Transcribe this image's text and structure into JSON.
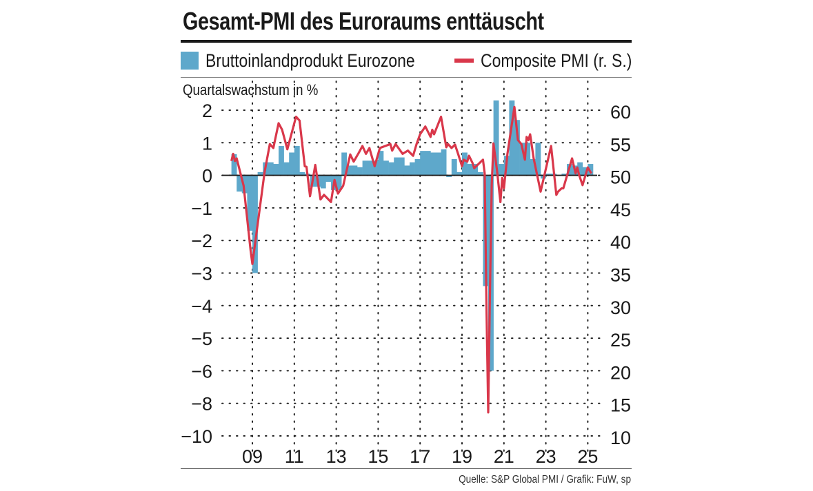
{
  "title": "Gesamt-PMI des Euroraums enttäuscht",
  "source": "Quelle: S&P Global PMI / Grafik: FuW, sp",
  "chart_data": {
    "type": "bar+line",
    "title": "Gesamt-PMI des Euroraums enttäuscht",
    "ylabel": "Quartalswachstum in %",
    "legend": [
      "Bruttoinlandprodukt Eurozone",
      "Composite PMI (r. S.)"
    ],
    "legend_placement": "top",
    "colors": {
      "bars": "#5ea8cb",
      "line": "#d9374a"
    },
    "grid": "dotted",
    "x_ticks": [
      "09",
      "11",
      "13",
      "15",
      "17",
      "19",
      "21",
      "23",
      "25"
    ],
    "x_tick_years": [
      2009,
      2011,
      2013,
      2015,
      2017,
      2019,
      2021,
      2023,
      2025
    ],
    "x_range": [
      "2008-01",
      "2025-06"
    ],
    "left_axis": {
      "ticks": [
        2,
        1,
        0,
        -1,
        -2,
        -3,
        -4,
        -5,
        -6,
        -8,
        -10
      ],
      "tick_labels": [
        "2",
        "1",
        "0",
        "−1",
        "−2",
        "−3",
        "−4",
        "−5",
        "−6",
        "−8",
        "−10"
      ],
      "scale": "nonlinear (−6 to −10 compressed)"
    },
    "right_axis": {
      "ticks": [
        60,
        55,
        50,
        45,
        40,
        35,
        30,
        25,
        20,
        15,
        10
      ],
      "range": [
        10,
        60
      ]
    },
    "gdp_series": {
      "name": "Bruttoinlandprodukt Eurozone",
      "start_quarter": "2008Q1",
      "values": [
        0.65,
        -0.5,
        -0.55,
        -1.7,
        -3.0,
        0.1,
        0.4,
        0.4,
        0.35,
        0.9,
        0.4,
        0.7,
        0.9,
        0.1,
        0.05,
        -0.35,
        -0.35,
        -0.4,
        -0.2,
        -0.45,
        -0.45,
        0.7,
        0.3,
        0.3,
        0.25,
        0.45,
        0.45,
        0.45,
        0.75,
        0.45,
        0.4,
        0.55,
        0.55,
        0.3,
        0.4,
        0.5,
        0.75,
        0.75,
        0.7,
        0.7,
        0.8,
        -0.05,
        0.5,
        0.1,
        0.7,
        0.35,
        0.35,
        0.1,
        -3.4,
        -6.0,
        2.3,
        0.35,
        0.6,
        2.3,
        1.7,
        1.0,
        1.0,
        0.5,
        1.0,
        -0.1,
        0.05,
        0.05,
        0.0,
        0.05,
        0.35,
        0.3,
        0.4,
        0.25,
        0.35
      ]
    },
    "pmi_series": {
      "name": "Composite PMI (r. S.)",
      "points": [
        [
          "2008-01",
          52.2
        ],
        [
          "2008-02",
          53.3
        ],
        [
          "2008-03",
          52.2
        ],
        [
          "2008-04",
          52.6
        ],
        [
          "2008-08",
          48.4
        ],
        [
          "2008-12",
          38.4
        ],
        [
          "2009-01",
          36.4
        ],
        [
          "2009-08",
          50.5
        ],
        [
          "2009-11",
          54.8
        ],
        [
          "2010-01",
          54.2
        ],
        [
          "2010-04",
          58.0
        ],
        [
          "2010-06",
          57.0
        ],
        [
          "2010-09",
          54.0
        ],
        [
          "2011-02",
          59.0
        ],
        [
          "2011-04",
          58.4
        ],
        [
          "2011-07",
          51.4
        ],
        [
          "2011-08",
          51.3
        ],
        [
          "2011-10",
          46.8
        ],
        [
          "2012-01",
          51.6
        ],
        [
          "2012-04",
          46.3
        ],
        [
          "2012-06",
          47.0
        ],
        [
          "2012-10",
          45.9
        ],
        [
          "2012-12",
          49.3
        ],
        [
          "2013-02",
          47.2
        ],
        [
          "2013-05",
          48.4
        ],
        [
          "2013-09",
          53.2
        ],
        [
          "2013-11",
          52.1
        ],
        [
          "2014-02",
          53.5
        ],
        [
          "2014-04",
          54.5
        ],
        [
          "2014-06",
          53.3
        ],
        [
          "2014-08",
          54.2
        ],
        [
          "2014-11",
          51.4
        ],
        [
          "2015-02",
          54.2
        ],
        [
          "2015-08",
          54.8
        ],
        [
          "2015-09",
          53.8
        ],
        [
          "2015-11",
          54.8
        ],
        [
          "2016-03",
          53.3
        ],
        [
          "2016-06",
          53.8
        ],
        [
          "2016-09",
          53.0
        ],
        [
          "2016-11",
          54.8
        ],
        [
          "2017-01",
          56.3
        ],
        [
          "2017-04",
          57.5
        ],
        [
          "2017-07",
          55.9
        ],
        [
          "2017-08",
          57.0
        ],
        [
          "2017-09",
          56.3
        ],
        [
          "2018-01",
          59.0
        ],
        [
          "2018-04",
          54.3
        ],
        [
          "2018-05",
          54.8
        ],
        [
          "2018-07",
          54.2
        ],
        [
          "2018-09",
          54.7
        ],
        [
          "2018-11",
          53.1
        ],
        [
          "2019-01",
          51.4
        ],
        [
          "2019-02",
          52.4
        ],
        [
          "2019-04",
          52.1
        ],
        [
          "2019-05",
          53.0
        ],
        [
          "2019-07",
          51.9
        ],
        [
          "2019-08",
          51.1
        ],
        [
          "2020-01",
          52.4
        ],
        [
          "2020-02",
          50.3
        ],
        [
          "2020-03",
          29.7
        ],
        [
          "2020-04",
          13.6
        ],
        [
          "2020-05",
          31.9
        ],
        [
          "2020-06",
          48.5
        ],
        [
          "2020-07",
          54.9
        ],
        [
          "2020-09",
          50.8
        ],
        [
          "2020-11",
          45.9
        ],
        [
          "2020-12",
          49.6
        ],
        [
          "2021-01",
          48.0
        ],
        [
          "2021-03",
          53.3
        ],
        [
          "2021-07",
          60.5
        ],
        [
          "2021-09",
          55.4
        ],
        [
          "2021-11",
          54.8
        ],
        [
          "2022-01",
          52.4
        ],
        [
          "2022-02",
          55.9
        ],
        [
          "2022-03",
          55.4
        ],
        [
          "2022-04",
          56.3
        ],
        [
          "2022-06",
          52.6
        ],
        [
          "2022-10",
          47.5
        ],
        [
          "2023-04",
          54.5
        ],
        [
          "2023-07",
          47.0
        ],
        [
          "2023-08",
          47.5
        ],
        [
          "2023-10",
          48.0
        ],
        [
          "2023-11",
          48.0
        ],
        [
          "2024-04",
          52.6
        ],
        [
          "2024-06",
          50.3
        ],
        [
          "2024-07",
          51.2
        ],
        [
          "2024-08",
          50.1
        ],
        [
          "2024-10",
          48.5
        ],
        [
          "2025-01",
          51.2
        ],
        [
          "2025-03",
          50.3
        ]
      ]
    }
  }
}
